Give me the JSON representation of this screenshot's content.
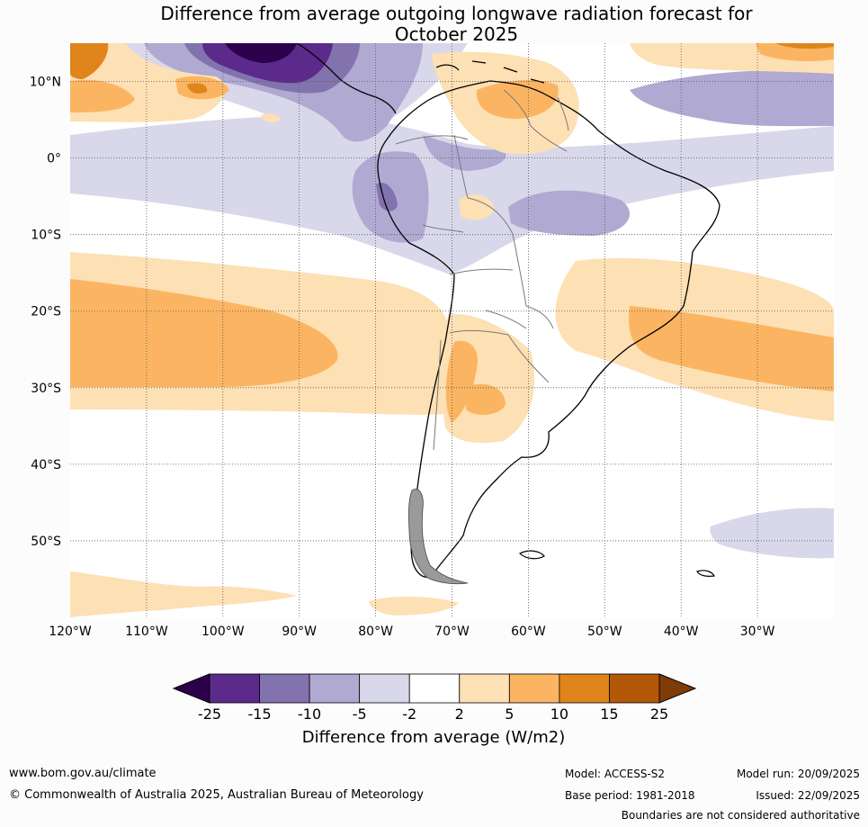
{
  "title": {
    "line1": "Difference from average outgoing longwave radiation forecast for",
    "line2": "October 2025"
  },
  "map": {
    "lat_labels": [
      "10°N",
      "0°",
      "10°S",
      "20°S",
      "30°S",
      "40°S",
      "50°S"
    ],
    "lat_values": [
      10,
      0,
      -10,
      -20,
      -30,
      -40,
      -50
    ],
    "lon_labels": [
      "120°W",
      "110°W",
      "100°W",
      "90°W",
      "80°W",
      "70°W",
      "60°W",
      "50°W",
      "40°W",
      "30°W"
    ],
    "lon_values": [
      -120,
      -110,
      -100,
      -90,
      -80,
      -70,
      -60,
      -50,
      -40,
      -30
    ],
    "extent": {
      "lon_min": -120,
      "lon_max": -20,
      "lat_min": -60,
      "lat_max": 15
    }
  },
  "colorbar": {
    "ticks": [
      "-25",
      "-15",
      "-10",
      "-5",
      "-2",
      "2",
      "5",
      "10",
      "15",
      "25"
    ],
    "colors": [
      "#5b2a8a",
      "#8272ad",
      "#b0a9d2",
      "#d9d8ea",
      "#ffffff",
      "#fde0b4",
      "#fbb562",
      "#e0841c",
      "#b35806"
    ],
    "under_color": "#2d004b",
    "over_color": "#7f3b08",
    "label": "Difference from average (W/m2)"
  },
  "footer": {
    "url": "www.bom.gov.au/climate",
    "copyright": "© Commonwealth of Australia 2025, Australian Bureau of Meteorology",
    "model": "Model: ACCESS-S2",
    "base_period": "Base period: 1981-2018",
    "model_run": "Model run: 20/09/2025",
    "issued": "Issued: 22/09/2025",
    "disclaimer": "Boundaries are not considered authoritative"
  }
}
